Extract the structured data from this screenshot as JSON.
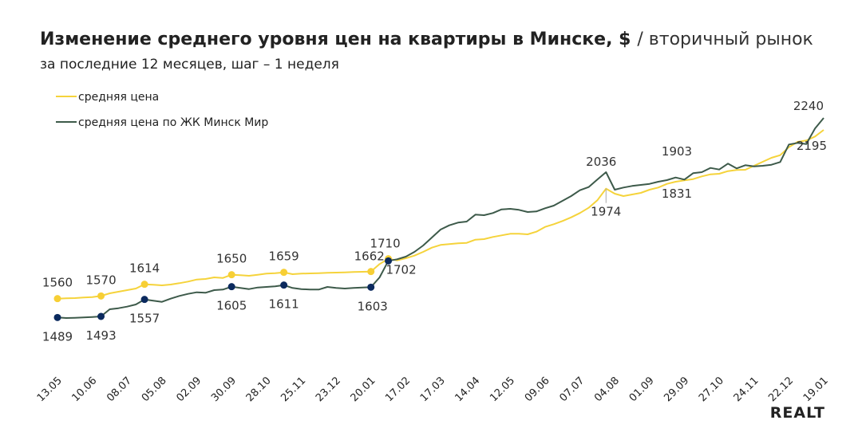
{
  "chart_data": {
    "type": "line",
    "title": "Изменение среднего уровня цен на квартиры в Минске, $",
    "title_suffix": "/ вторичный рынок",
    "subtitle": "за последние 12 месяцев, шаг – 1 неделя",
    "brand": "REALT",
    "categories": [
      "13.05",
      null,
      null,
      null,
      "10.06",
      null,
      null,
      null,
      "08.07",
      null,
      null,
      null,
      "05.08",
      null,
      null,
      null,
      "02.09",
      null,
      null,
      null,
      "30.09",
      null,
      null,
      null,
      "28.10",
      null,
      null,
      null,
      "25.11",
      null,
      null,
      null,
      "23.12",
      null,
      null,
      null,
      "20.01",
      null,
      null,
      null,
      "17.02",
      null,
      null,
      null,
      "17.03",
      null,
      null,
      null,
      "14.04",
      null,
      null,
      null,
      "12.05",
      null,
      null,
      null,
      "09.06",
      null,
      null,
      null,
      "07.07",
      null,
      null,
      null,
      "04.08",
      null,
      null,
      null,
      "01.09",
      null,
      null,
      null,
      "29.09",
      null,
      null,
      null,
      "27.10",
      null,
      null,
      null,
      "24.11",
      null,
      null,
      null,
      "22.12",
      null,
      null,
      null,
      "19.01"
    ],
    "series": [
      {
        "name": "средняя цена",
        "color": "#f5d33b",
        "dot_color": "#f7cf35",
        "values": [
          1560,
          1561,
          1562,
          1564,
          1566,
          1570,
          1580,
          1586,
          1592,
          1598,
          1614,
          1612,
          1610,
          1613,
          1618,
          1624,
          1632,
          1634,
          1640,
          1638,
          1650,
          1648,
          1646,
          1650,
          1654,
          1656,
          1659,
          1652,
          1654,
          1655,
          1656,
          1657,
          1658,
          1659,
          1660,
          1661,
          1662,
          1690,
          1710,
          1704,
          1712,
          1722,
          1736,
          1752,
          1762,
          1765,
          1768,
          1770,
          1782,
          1784,
          1792,
          1798,
          1804,
          1804,
          1802,
          1812,
          1830,
          1840,
          1852,
          1866,
          1882,
          1902,
          1930,
          1974,
          1955,
          1946,
          1952,
          1958,
          1970,
          1978,
          1992,
          2000,
          2005,
          2010,
          2020,
          2028,
          2030,
          2040,
          2044,
          2045,
          2060,
          2075,
          2090,
          2100,
          2130,
          2150,
          2155,
          2170,
          2195
        ]
      },
      {
        "name": "средняя цена по ЖК Минск Мир",
        "color": "#3d5a4a",
        "dot_color": "#0b2a5e",
        "values": [
          1489,
          1487,
          1488,
          1489,
          1491,
          1493,
          1520,
          1524,
          1530,
          1538,
          1557,
          1552,
          1548,
          1560,
          1570,
          1578,
          1584,
          1582,
          1592,
          1594,
          1605,
          1600,
          1596,
          1602,
          1604,
          1606,
          1611,
          1600,
          1596,
          1594,
          1594,
          1604,
          1600,
          1598,
          1600,
          1602,
          1603,
          1640,
          1702,
          1708,
          1718,
          1736,
          1760,
          1790,
          1820,
          1836,
          1846,
          1850,
          1876,
          1874,
          1882,
          1896,
          1898,
          1894,
          1886,
          1888,
          1900,
          1910,
          1928,
          1946,
          1968,
          1980,
          2008,
          2036,
          1970,
          1978,
          1984,
          1988,
          1992,
          2000,
          2006,
          2016,
          2008,
          2032,
          2036,
          2052,
          2046,
          2068,
          2050,
          2062,
          2058,
          2060,
          2064,
          2074,
          2140,
          2146,
          2142,
          2200,
          2240
        ]
      }
    ],
    "annotations": [
      1903,
      1831
    ]
  }
}
